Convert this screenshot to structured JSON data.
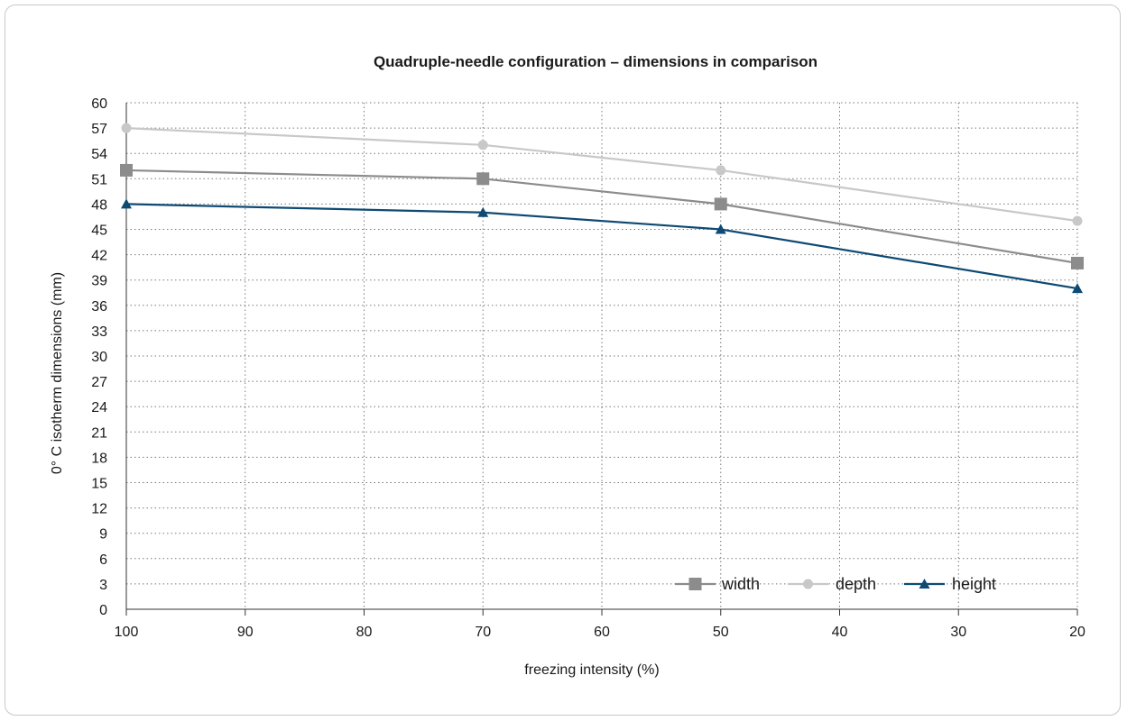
{
  "chart_data": {
    "type": "line",
    "title": "Quadruple-needle configuration – dimensions in comparison",
    "xlabel": "freezing intensity (%)",
    "ylabel": "0° C isotherm dimensions (mm)",
    "x_ticks": [
      "100",
      "90",
      "80",
      "70",
      "60",
      "50",
      "40",
      "30",
      "20"
    ],
    "y_ticks": [
      "0",
      "3",
      "6",
      "9",
      "12",
      "15",
      "18",
      "21",
      "24",
      "27",
      "30",
      "33",
      "36",
      "39",
      "42",
      "45",
      "48",
      "51",
      "54",
      "57",
      "60"
    ],
    "xlim": [
      100,
      20
    ],
    "ylim": [
      0,
      60
    ],
    "x_reversed": true,
    "grid": true,
    "legend_position": "bottom-right",
    "series": [
      {
        "name": "width",
        "color": "#8c8c8c",
        "marker": "square",
        "x": [
          100,
          70,
          50,
          20
        ],
        "values": [
          52,
          51,
          48,
          41
        ]
      },
      {
        "name": "depth",
        "color": "#c8c8c8",
        "marker": "circle",
        "x": [
          100,
          70,
          50,
          20
        ],
        "values": [
          57,
          55,
          52,
          46
        ]
      },
      {
        "name": "height",
        "color": "#0e4a73",
        "marker": "triangle",
        "x": [
          100,
          70,
          50,
          20
        ],
        "values": [
          48,
          47,
          45,
          38
        ]
      }
    ]
  }
}
